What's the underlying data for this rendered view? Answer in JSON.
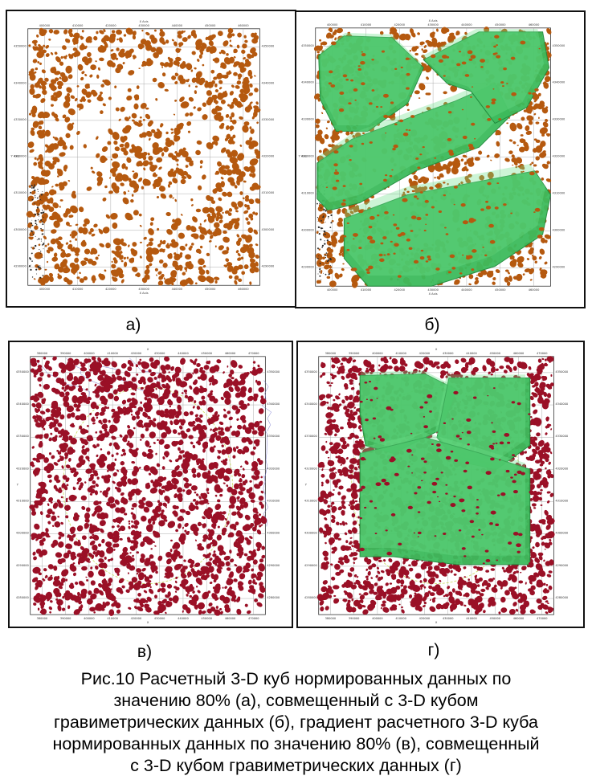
{
  "figure": {
    "panels": [
      {
        "id": "a",
        "label": "а)",
        "blob_color": "#b5590f",
        "has_green_overlay": false,
        "x_ticks": [
          "400000",
          "410000",
          "420000",
          "430000",
          "440000",
          "450000",
          "460000"
        ],
        "y_ticks": [
          "4350000",
          "4340000",
          "4330000",
          "4320000",
          "4310000",
          "4300000",
          "4290000"
        ],
        "axis_x_label": "X Axis",
        "axis_y_label": "Y Axis"
      },
      {
        "id": "b",
        "label": "б)",
        "blob_color": "#b5590f",
        "has_green_overlay": true,
        "x_ticks": [
          "400000",
          "410000",
          "420000",
          "430000",
          "440000",
          "450000",
          "460000"
        ],
        "y_ticks": [
          "4350000",
          "4340000",
          "4330000",
          "4320000",
          "4310000",
          "4300000",
          "4290000"
        ],
        "axis_x_label": "X Axis",
        "axis_y_label": "Y Axis"
      },
      {
        "id": "v",
        "label": "в)",
        "blob_color": "#9a1026",
        "has_green_overlay": false,
        "x_ticks": [
          "380000",
          "390000",
          "400000",
          "410000",
          "420000",
          "430000",
          "440000",
          "450000",
          "460000",
          "470000"
        ],
        "y_ticks": [
          "4350000",
          "4340000",
          "4330000",
          "4320000",
          "4310000",
          "4300000",
          "4290000",
          "4280000"
        ],
        "axis_x_label": "X",
        "axis_y_label": "Y"
      },
      {
        "id": "g",
        "label": "г)",
        "blob_color": "#9a1026",
        "has_green_overlay": true,
        "x_ticks": [
          "380000",
          "390000",
          "400000",
          "410000",
          "420000",
          "430000",
          "440000",
          "450000",
          "460000",
          "470000"
        ],
        "y_ticks": [
          "4350000",
          "4340000",
          "4330000",
          "4320000",
          "4310000",
          "4300000",
          "4290000",
          "4280000"
        ],
        "axis_x_label": "X",
        "axis_y_label": "Y"
      }
    ],
    "colors": {
      "green_body": "#3dbb5c",
      "green_light": "#6ee08a",
      "green_dark": "#1f8a3c",
      "grid": "#9a9a9a",
      "contour": "#7a7ad0"
    },
    "caption_lines": [
      "Рис.10 Расчетный 3-D куб нормированных данных по",
      "значению 80% (а), совмещенный с 3-D кубом",
      "гравиметрических данных (б), градиент расчетного 3-D куба",
      "нормированных данных по значению 80% (в), совмещенный",
      "с 3-D кубом гравиметрических данных (г)"
    ]
  }
}
